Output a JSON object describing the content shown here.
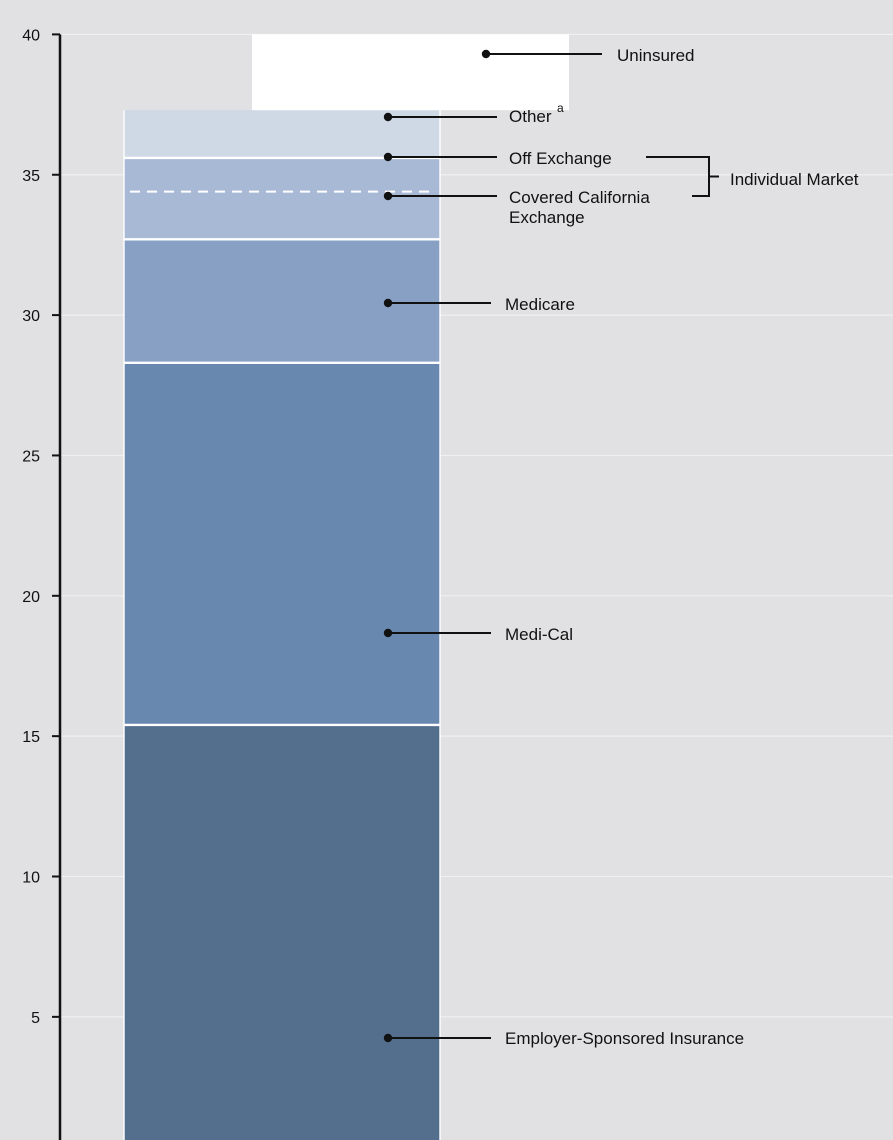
{
  "chart_data": {
    "type": "bar",
    "stacked": true,
    "title": "",
    "xlabel": "",
    "ylabel": "",
    "ylim": [
      0,
      40
    ],
    "yticks": [
      5,
      10,
      15,
      20,
      25,
      30,
      35,
      40
    ],
    "grid": true,
    "segments": [
      {
        "name": "Employer-Sponsored Insurance",
        "start": 0,
        "end": 15.4,
        "color": "#546f8e"
      },
      {
        "name": "Medi-Cal",
        "start": 15.4,
        "end": 28.3,
        "color": "#6888b0"
      },
      {
        "name": "Medicare",
        "start": 28.3,
        "end": 32.7,
        "color": "#87a0c4"
      },
      {
        "name": "Covered California Exchange",
        "start": 32.7,
        "end": 34.4,
        "color": "#a8b9d6"
      },
      {
        "name": "Off Exchange",
        "start": 34.4,
        "end": 35.6,
        "color": "#a8b9d6"
      },
      {
        "name": "Other",
        "start": 35.6,
        "end": 37.3,
        "color": "#cfd9e6"
      },
      {
        "name": "Uninsured",
        "start": 37.3,
        "end": 40.0,
        "color": "#ffffff"
      }
    ],
    "labels": {
      "employer": "Employer-Sponsored Insurance",
      "medical": "Medi-Cal",
      "medicare": "Medicare",
      "covered_line1": "Covered California",
      "covered_line2": "Exchange",
      "off_exchange": "Off Exchange",
      "other": "Other",
      "other_note": "a",
      "uninsured": "Uninsured",
      "bracket": "Individual Market"
    }
  }
}
